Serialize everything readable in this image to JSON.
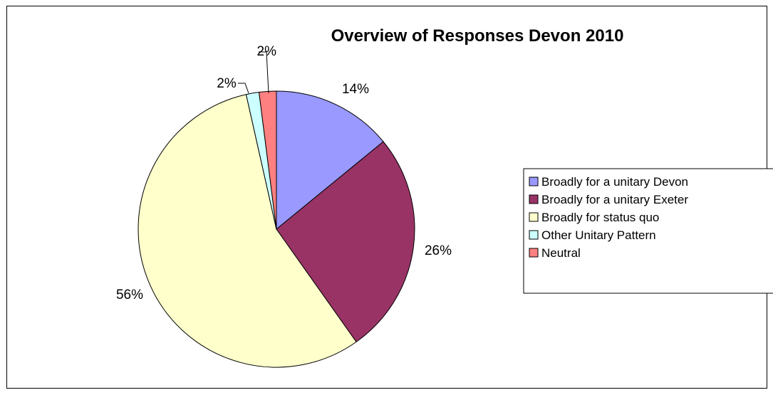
{
  "chart_data": {
    "type": "pie",
    "title": "Overview of Responses Devon 2010",
    "slices": [
      {
        "name": "Broadly for a unitary Devon",
        "value": 14,
        "label": "14%",
        "color": "#9999ff"
      },
      {
        "name": "Broadly for a unitary Exeter",
        "value": 26,
        "label": "26%",
        "color": "#993366"
      },
      {
        "name": "Broadly for status quo",
        "value": 56,
        "label": "56%",
        "color": "#ffffcc"
      },
      {
        "name": "Other Unitary Pattern",
        "value": 1.5,
        "label": "2%",
        "color": "#ccffff"
      },
      {
        "name": "Neutral",
        "value": 2,
        "label": "2%",
        "color": "#ff8080"
      }
    ],
    "legend_position": "right"
  }
}
